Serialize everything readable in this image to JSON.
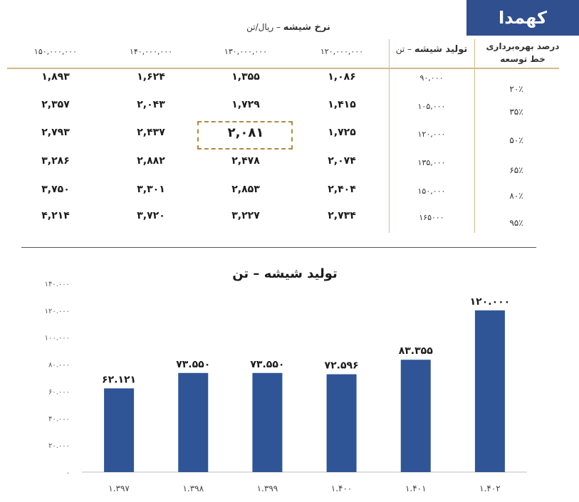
{
  "brand": "کهمدا",
  "table": {
    "title": "نرخ شیشه",
    "title_unit": "– ریال/تن",
    "rate_headers": [
      "۱۲۰,۰۰۰,۰۰۰",
      "۱۳۰,۰۰۰,۰۰۰",
      "۱۴۰,۰۰۰,۰۰۰",
      "۱۵۰,۰۰۰,۰۰۰"
    ],
    "production_header": "تولید شیشه",
    "production_unit": "– تن",
    "utilization_header_line1": "درصد بهره‌برداری",
    "utilization_header_line2": "خط توسعه",
    "rows": [
      {
        "utilization": "۲۰٪",
        "production": "۹۰,۰۰۰",
        "values": [
          "۱,۰۸۶",
          "۱,۳۵۵",
          "۱,۶۲۴",
          "۱,۸۹۳"
        ]
      },
      {
        "utilization": "۳۵٪",
        "production": "۱۰۵,۰۰۰",
        "values": [
          "۱,۴۱۵",
          "۱,۷۲۹",
          "۲,۰۴۳",
          "۲,۳۵۷"
        ]
      },
      {
        "utilization": "۵۰٪",
        "production": "۱۲۰,۰۰۰",
        "values": [
          "۱,۷۲۵",
          "۲,۰۸۱",
          "۲,۴۳۷",
          "۲,۷۹۳"
        ]
      },
      {
        "utilization": "۶۵٪",
        "production": "۱۳۵,۰۰۰",
        "values": [
          "۲,۰۷۴",
          "۲,۴۷۸",
          "۲,۸۸۲",
          "۳,۲۸۶"
        ]
      },
      {
        "utilization": "۸۰٪",
        "production": "۱۵۰,۰۰۰",
        "values": [
          "۲,۴۰۴",
          "۲,۸۵۳",
          "۳,۳۰۱",
          "۳,۷۵۰"
        ]
      },
      {
        "utilization": "۹۵٪",
        "production": "۱۶۵۰۰۰",
        "values": [
          "۲,۷۳۴",
          "۳,۲۲۷",
          "۳,۷۲۰",
          "۴,۲۱۴"
        ]
      }
    ],
    "highlighted_value": "۲,۰۸۱"
  },
  "chart_data": {
    "type": "bar",
    "title": "تولید شیشه – تن",
    "categories": [
      "۱.۳۹۷",
      "۱.۳۹۸",
      "۱.۳۹۹",
      "۱.۴۰۰",
      "۱.۴۰۱",
      "۱.۴۰۲"
    ],
    "values": [
      62121,
      73550,
      73550,
      72596,
      83355,
      120000
    ],
    "value_labels": [
      "۶۲.۱۲۱",
      "۷۳.۵۵۰",
      "۷۳.۵۵۰",
      "۷۲.۵۹۶",
      "۸۳.۳۵۵",
      "۱۲۰.۰۰۰"
    ],
    "ylim": [
      0,
      140000
    ],
    "yticks": [
      0,
      20000,
      40000,
      60000,
      80000,
      100000,
      120000,
      140000
    ],
    "ytick_labels": [
      "۰",
      "۲۰.۰۰۰",
      "۴۰.۰۰۰",
      "۶۰.۰۰۰",
      "۸۰.۰۰۰",
      "۱۰۰.۰۰۰",
      "۱۲۰.۰۰۰",
      "۱۴۰.۰۰۰"
    ],
    "bar_color": "#2f5597",
    "grid": false,
    "legend": "none"
  }
}
